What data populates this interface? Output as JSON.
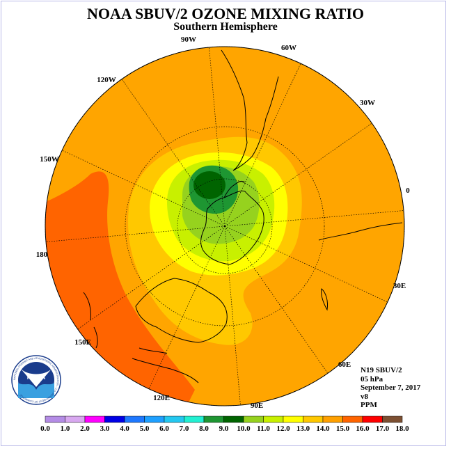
{
  "title": "NOAA SBUV/2 OZONE MIXING RATIO",
  "subtitle": "Southern Hemisphere",
  "longitude_labels": [
    "90W",
    "60W",
    "30W",
    "0",
    "30E",
    "60E",
    "90E",
    "120E",
    "150E",
    "180",
    "150W",
    "120W"
  ],
  "info": {
    "satellite": "N19 SBUV/2",
    "level": "05 hPa",
    "date": "September 7, 2017",
    "version": "v8",
    "units": "PPM"
  },
  "legend": {
    "ticks": [
      "0.0",
      "1.0",
      "2.0",
      "3.0",
      "4.0",
      "5.0",
      "6.0",
      "7.0",
      "8.0",
      "9.0",
      "10.0",
      "11.0",
      "12.0",
      "13.0",
      "14.0",
      "15.0",
      "16.0",
      "17.0",
      "18.0"
    ],
    "colors": [
      "#b48ce6",
      "#d8a8f0",
      "#ff00ff",
      "#0000e6",
      "#1e78ff",
      "#1ea0ff",
      "#24c8f0",
      "#22f0d2",
      "#1e9632",
      "#006400",
      "#96d21e",
      "#c8f000",
      "#ffff00",
      "#ffc800",
      "#ffa000",
      "#ff6400",
      "#ff0000",
      "#7d5032"
    ]
  },
  "logo": {
    "text": "NOAA",
    "ring_text": "NATIONAL OCEANIC AND ATMOSPHERIC ADMINISTRATION · U.S. DEPARTMENT OF COMMERCE"
  },
  "colors": {
    "outer_orange": "#ffa500",
    "dark_orange": "#ff6400",
    "light_orange": "#ffc800",
    "yellow": "#ffff00",
    "yellow_green": "#c8f000",
    "light_green": "#96d21e",
    "green": "#1e9632",
    "dark_green": "#006400"
  }
}
